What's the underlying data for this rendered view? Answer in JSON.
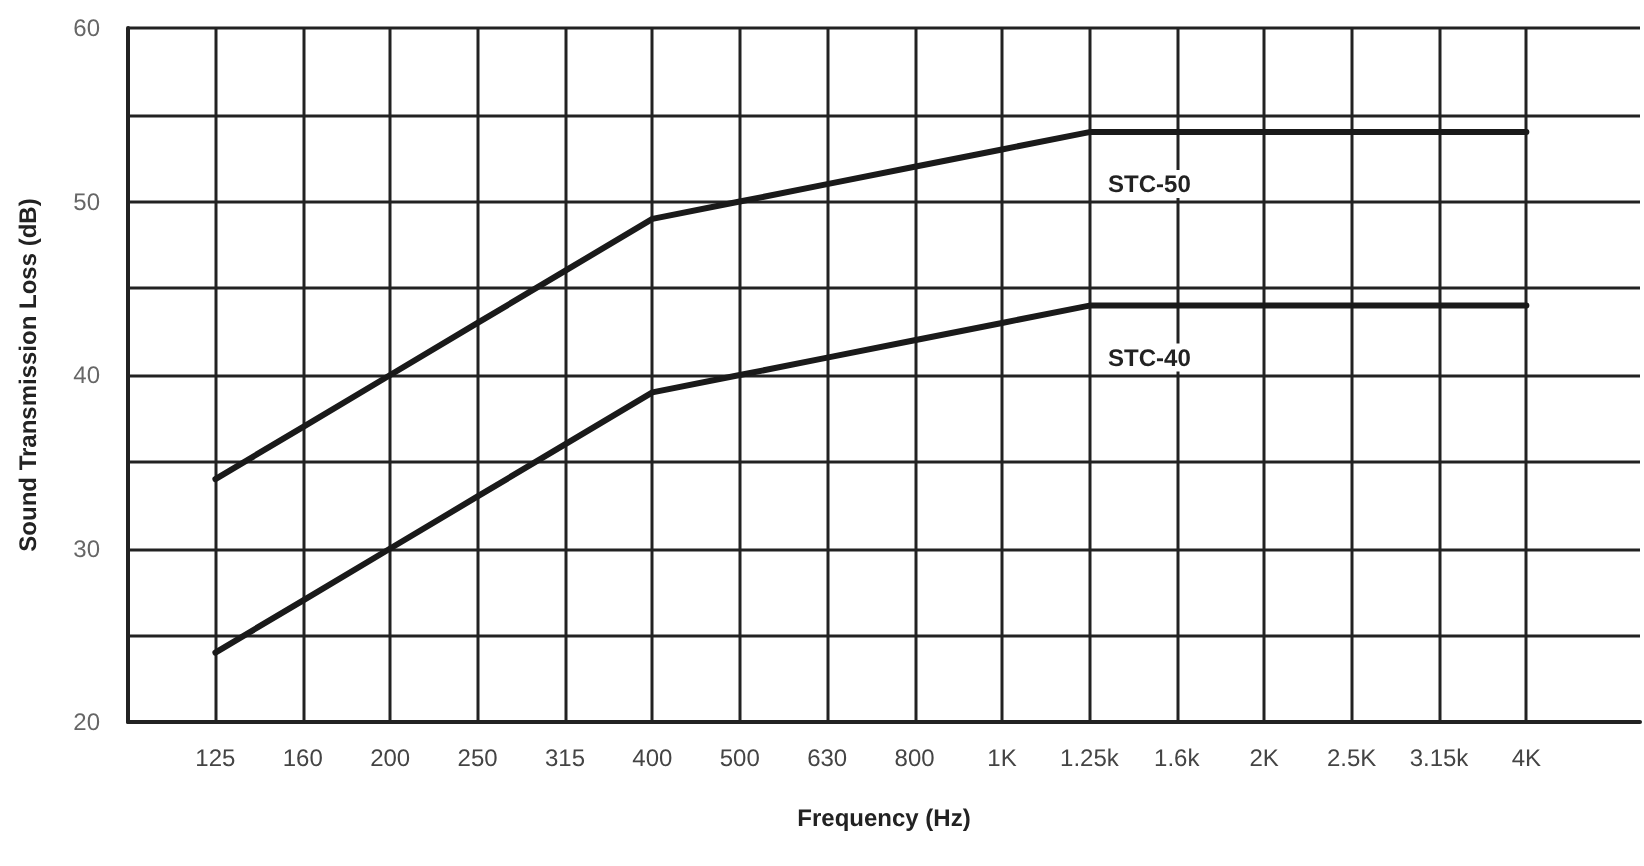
{
  "chart_data": {
    "type": "line",
    "xlabel": "Frequency (Hz)",
    "ylabel": "Sound Transmission Loss (dB)",
    "categories": [
      "125",
      "160",
      "200",
      "250",
      "315",
      "400",
      "500",
      "630",
      "800",
      "1K",
      "1.25k",
      "1.6k",
      "2K",
      "2.5K",
      "3.15k",
      "4K"
    ],
    "series": [
      {
        "name": "STC-50",
        "color": "#1a1a1a",
        "values": [
          34,
          37,
          40,
          43,
          46,
          49,
          50,
          51,
          52,
          53,
          54,
          54,
          54,
          54,
          54,
          54
        ]
      },
      {
        "name": "STC-40",
        "color": "#1a1a1a",
        "values": [
          24,
          27,
          30,
          33,
          36,
          39,
          40,
          41,
          42,
          43,
          44,
          44,
          44,
          44,
          44,
          44
        ]
      }
    ],
    "ylim": [
      20,
      60
    ],
    "yticks": [
      20,
      30,
      40,
      50,
      60
    ],
    "grid": true,
    "marker": "none",
    "line_style": "solid",
    "legend": false
  }
}
